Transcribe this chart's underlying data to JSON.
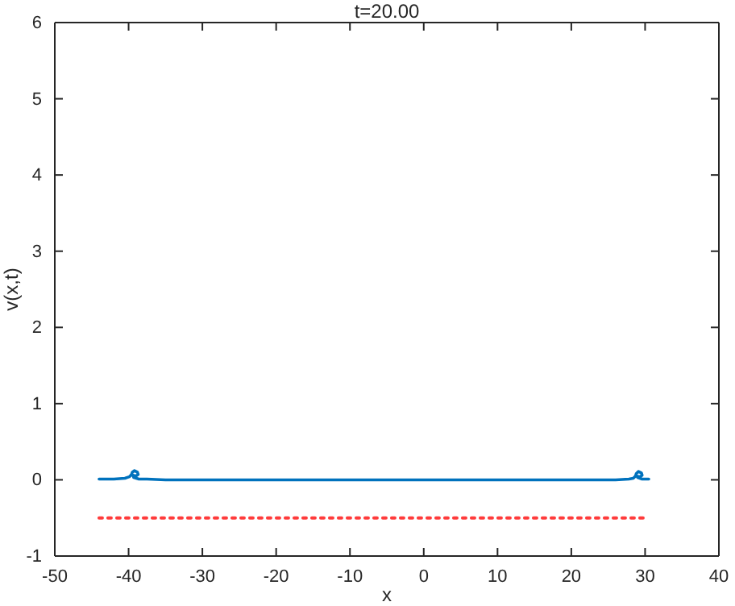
{
  "chart_data": {
    "type": "line",
    "title": "t=20.00",
    "xlabel": "x",
    "ylabel": "v(x,t)",
    "xlim": [
      -50,
      40
    ],
    "xticks": [
      -50,
      -40,
      -30,
      -20,
      -10,
      0,
      10,
      20,
      30,
      40
    ],
    "ylim": [
      -1,
      6
    ],
    "yticks": [
      -1,
      0,
      1,
      2,
      3,
      4,
      5,
      6
    ],
    "grid": false,
    "series": [
      {
        "color": "#0072bd",
        "line_style": "solid",
        "x": [
          -44,
          -42,
          -40.5,
          -39.9,
          -39.6,
          -39.5,
          -39.2,
          -38.8,
          -38.7,
          -39,
          -39.4,
          -39.3,
          -38.6,
          -37.5,
          -35,
          -30,
          -20,
          -10,
          0,
          10,
          20,
          26,
          27.8,
          28.4,
          28.7,
          28.8,
          29.1,
          29.5,
          29.6,
          29.3,
          28.9,
          29.0,
          29.6,
          30.5
        ],
        "values": [
          0.01,
          0.01,
          0.02,
          0.04,
          0.07,
          0.1,
          0.12,
          0.1,
          0.07,
          0.05,
          0.06,
          0.03,
          0.01,
          0.01,
          0,
          0,
          0,
          0,
          0,
          0,
          0,
          0,
          0.01,
          0.02,
          0.05,
          0.08,
          0.11,
          0.09,
          0.06,
          0.04,
          0.05,
          0.03,
          0.01,
          0.01
        ]
      },
      {
        "color": "#ff3b3b",
        "line_style": "dotted",
        "x": [
          -44,
          -30,
          -20,
          -10,
          0,
          10,
          20,
          30
        ],
        "values": [
          -0.5,
          -0.5,
          -0.5,
          -0.5,
          -0.5,
          -0.5,
          -0.5,
          -0.5
        ]
      }
    ]
  }
}
